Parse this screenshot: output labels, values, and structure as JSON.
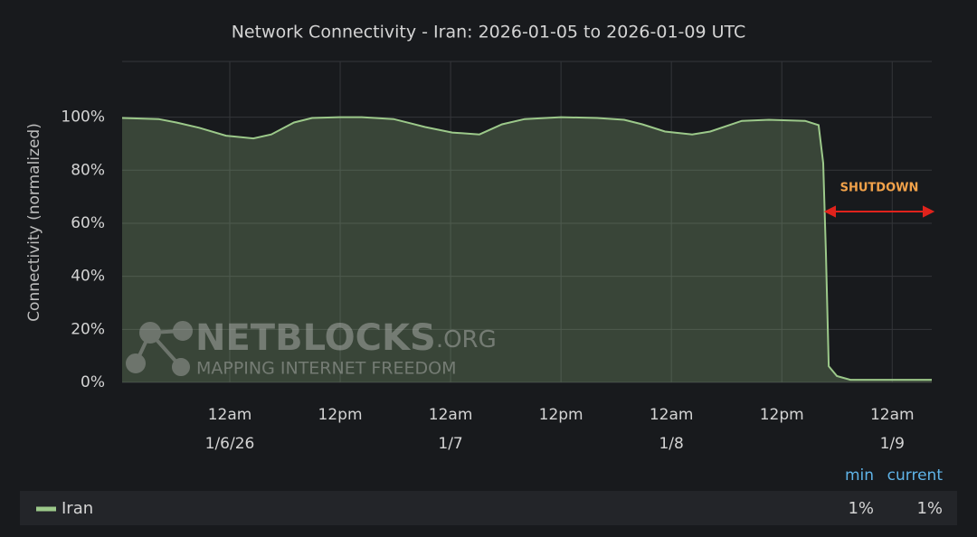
{
  "chart_data": {
    "type": "line",
    "title": "Network Connectivity - Iran: 2026-01-05 to 2026-01-09 UTC",
    "y_label": "Connectivity (normalized)",
    "x": [
      "2026-01-05T12:18",
      "2026-01-05T16:15",
      "2026-01-05T18:12",
      "2026-01-05T20:40",
      "2026-01-05T23:36",
      "2026-01-06T02:34",
      "2026-01-06T04:31",
      "2026-01-06T06:59",
      "2026-01-06T08:57",
      "2026-01-06T11:54",
      "2026-01-06T14:21",
      "2026-01-06T17:48",
      "2026-01-06T19:46",
      "2026-01-06T21:14",
      "2026-01-07T00:11",
      "2026-01-07T03:08",
      "2026-01-07T05:36",
      "2026-01-07T08:03",
      "2026-01-07T12:00",
      "2026-01-07T15:55",
      "2026-01-07T18:52",
      "2026-01-07T20:50",
      "2026-01-07T23:18",
      "2026-01-08T02:15",
      "2026-01-08T04:13",
      "2026-01-08T07:39",
      "2026-01-08T10:36",
      "2026-01-08T14:32",
      "2026-01-08T16:00",
      "2026-01-08T16:30",
      "2026-01-08T16:48",
      "2026-01-08T17:06",
      "2026-01-08T18:00",
      "2026-01-08T19:27",
      "2026-01-09T04:18"
    ],
    "series": [
      {
        "name": "Iran",
        "color": "#9cc98a",
        "values": [
          99.7,
          99.3,
          98,
          96,
          93,
          92,
          93.5,
          98,
          99.7,
          100,
          100,
          99.3,
          97.6,
          96.3,
          94.2,
          93.5,
          97.3,
          99.3,
          100,
          99.7,
          99,
          97.3,
          94.6,
          93.5,
          94.6,
          98.6,
          99,
          98.6,
          97,
          82.7,
          48.6,
          6.1,
          2.4,
          1,
          1
        ],
        "stats": [
          1,
          1
        ],
        "stats_labels": [
          "1%",
          "1%"
        ]
      }
    ],
    "stats_columns": [
      "min",
      "current"
    ],
    "xlim": [
      "2026-01-05T12:18",
      "2026-01-09T04:18"
    ],
    "xticks": [
      {
        "value": "2026-01-06T00:00",
        "label": "12am",
        "date": "1/6/26"
      },
      {
        "value": "2026-01-06T12:00",
        "label": "12pm"
      },
      {
        "value": "2026-01-07T00:00",
        "label": "12am",
        "date": "1/7"
      },
      {
        "value": "2026-01-07T12:00",
        "label": "12pm"
      },
      {
        "value": "2026-01-08T00:00",
        "label": "12am",
        "date": "1/8"
      },
      {
        "value": "2026-01-08T12:00",
        "label": "12pm"
      },
      {
        "value": "2026-01-09T00:00",
        "label": "12am",
        "date": "1/9"
      }
    ],
    "ylim": [
      0,
      121
    ],
    "yticks": [
      {
        "value": 0,
        "label": "0%"
      },
      {
        "value": 20,
        "label": "20%"
      },
      {
        "value": 40,
        "label": "40%"
      },
      {
        "value": 60,
        "label": "60%"
      },
      {
        "value": 80,
        "label": "80%"
      },
      {
        "value": 100,
        "label": "100%"
      }
    ],
    "grid": true,
    "annotation": "SHUTDOWN",
    "watermark": {
      "name": "NETBLOCKS",
      "suffix": ".ORG",
      "tagline": "MAPPING INTERNET FREEDOM"
    }
  }
}
